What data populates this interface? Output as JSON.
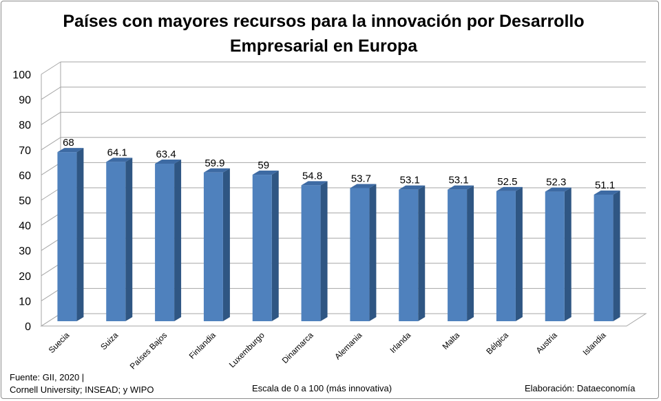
{
  "title_line1": "Países con mayores recursos para la innovación por Desarrollo",
  "title_line2": "Empresarial en Europa",
  "source_line1": "Fuente:  GII, 2020 |",
  "source_line2": "Cornell University; INSEAD; y WIPO",
  "scale_note": "Escala de 0 a 100 (más innovativa)",
  "credit": "Elaboración: Dataeconomía",
  "colors": {
    "bar_front": "#4f81bd",
    "bar_side": "#2f5683",
    "bar_top": "#3d6aa3",
    "grid": "#a6a6a6"
  },
  "chart_data": {
    "type": "bar",
    "categories": [
      "Suecia",
      "Suiza",
      "Países Bajos",
      "Finlandia",
      "Luxemburgo",
      "Dinamarca",
      "Alemania",
      "Irlanda",
      "Malta",
      "Bélgica",
      "Austria",
      "Islandia"
    ],
    "values": [
      68,
      64.1,
      63.4,
      59.9,
      59,
      54.8,
      53.7,
      53.1,
      53.1,
      52.5,
      52.3,
      51.1
    ],
    "value_labels": [
      "68",
      "64.1",
      "63.4",
      "59.9",
      "59",
      "54.8",
      "53.7",
      "53.1",
      "53.1",
      "52.5",
      "52.3",
      "51.1"
    ],
    "title": "Países con mayores recursos para la innovación por Desarrollo Empresarial en Europa",
    "xlabel": "",
    "ylabel": "",
    "ylim": [
      0,
      100
    ],
    "yticks": [
      0,
      10,
      20,
      30,
      40,
      50,
      60,
      70,
      80,
      90,
      100
    ],
    "grid": true,
    "legend": "none",
    "style": "3d-bar"
  }
}
